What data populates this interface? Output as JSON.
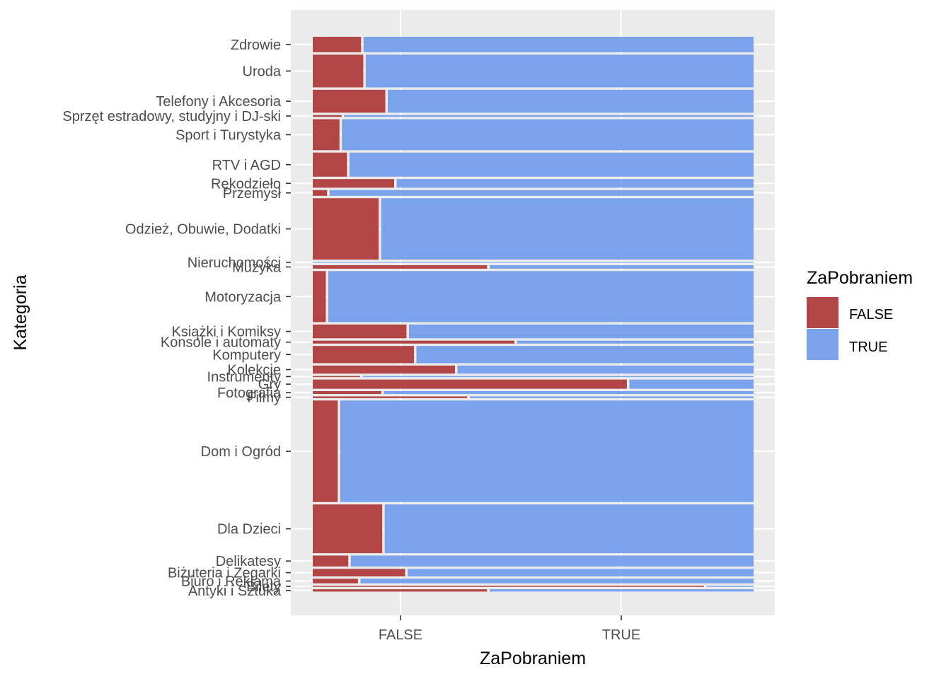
{
  "chart_data": {
    "type": "mosaic",
    "xlabel": "ZaPobraniem",
    "ylabel": "Kategoria",
    "x_ticks": [
      "FALSE",
      "TRUE"
    ],
    "colors": {
      "FALSE": "#b24545",
      "TRUE": "#7aa3ec"
    },
    "legend": {
      "title": "ZaPobraniem",
      "position": "right",
      "entries": [
        {
          "label": "FALSE",
          "color": "#b24545"
        },
        {
          "label": "TRUE",
          "color": "#7aa3ec"
        }
      ]
    },
    "grid": true,
    "categories": [
      {
        "name": "Zdrowie",
        "share": 0.027,
        "false_prop": 0.112
      },
      {
        "name": "Uroda",
        "share": 0.057,
        "false_prop": 0.117
      },
      {
        "name": "Telefony i Akcesoria",
        "share": 0.04,
        "false_prop": 0.167
      },
      {
        "name": "Sprzęt estradowy, studyjny i DJ-ski",
        "share": 0.003,
        "false_prop": 0.068
      },
      {
        "name": "Sport i Turystyka",
        "share": 0.054,
        "false_prop": 0.063
      },
      {
        "name": "RTV i AGD",
        "share": 0.042,
        "false_prop": 0.08
      },
      {
        "name": "Rękodzieło",
        "share": 0.015,
        "false_prop": 0.187
      },
      {
        "name": "Przemysł",
        "share": 0.01,
        "false_prop": 0.035
      },
      {
        "name": "Odzież, Obuwie, Dodatki",
        "share": 0.107,
        "false_prop": 0.152
      },
      {
        "name": "Nieruchomości",
        "share": 0.001,
        "false_prop": 0.0
      },
      {
        "name": "Muzyka",
        "share": 0.006,
        "false_prop": 0.398
      },
      {
        "name": "Motoryzacja",
        "share": 0.089,
        "false_prop": 0.032
      },
      {
        "name": "Książki i Komiksy",
        "share": 0.024,
        "false_prop": 0.215
      },
      {
        "name": "Konsole i automaty",
        "share": 0.005,
        "false_prop": 0.46
      },
      {
        "name": "Komputery",
        "share": 0.03,
        "false_prop": 0.232
      },
      {
        "name": "Kolekcje",
        "share": 0.014,
        "false_prop": 0.325
      },
      {
        "name": "Instrumenty",
        "share": 0.002,
        "false_prop": 0.11
      },
      {
        "name": "Gry",
        "share": 0.016,
        "false_prop": 0.715
      },
      {
        "name": "Fotografia",
        "share": 0.005,
        "false_prop": 0.158
      },
      {
        "name": "Filmy",
        "share": 0.003,
        "false_prop": 0.353
      },
      {
        "name": "Dom i Ogród",
        "share": 0.177,
        "false_prop": 0.059
      },
      {
        "name": "Dla Dzieci",
        "share": 0.085,
        "false_prop": 0.16
      },
      {
        "name": "Delikatesy",
        "share": 0.019,
        "false_prop": 0.083
      },
      {
        "name": "Biżuteria i Zegarki",
        "share": 0.013,
        "false_prop": 0.212
      },
      {
        "name": "Biuro i Reklama",
        "share": 0.008,
        "false_prop": 0.105
      },
      {
        "name": "Bilety",
        "share": 0.002,
        "false_prop": 0.89
      },
      {
        "name": "Antyki i Sztuka",
        "share": 0.004,
        "false_prop": 0.398
      }
    ]
  }
}
